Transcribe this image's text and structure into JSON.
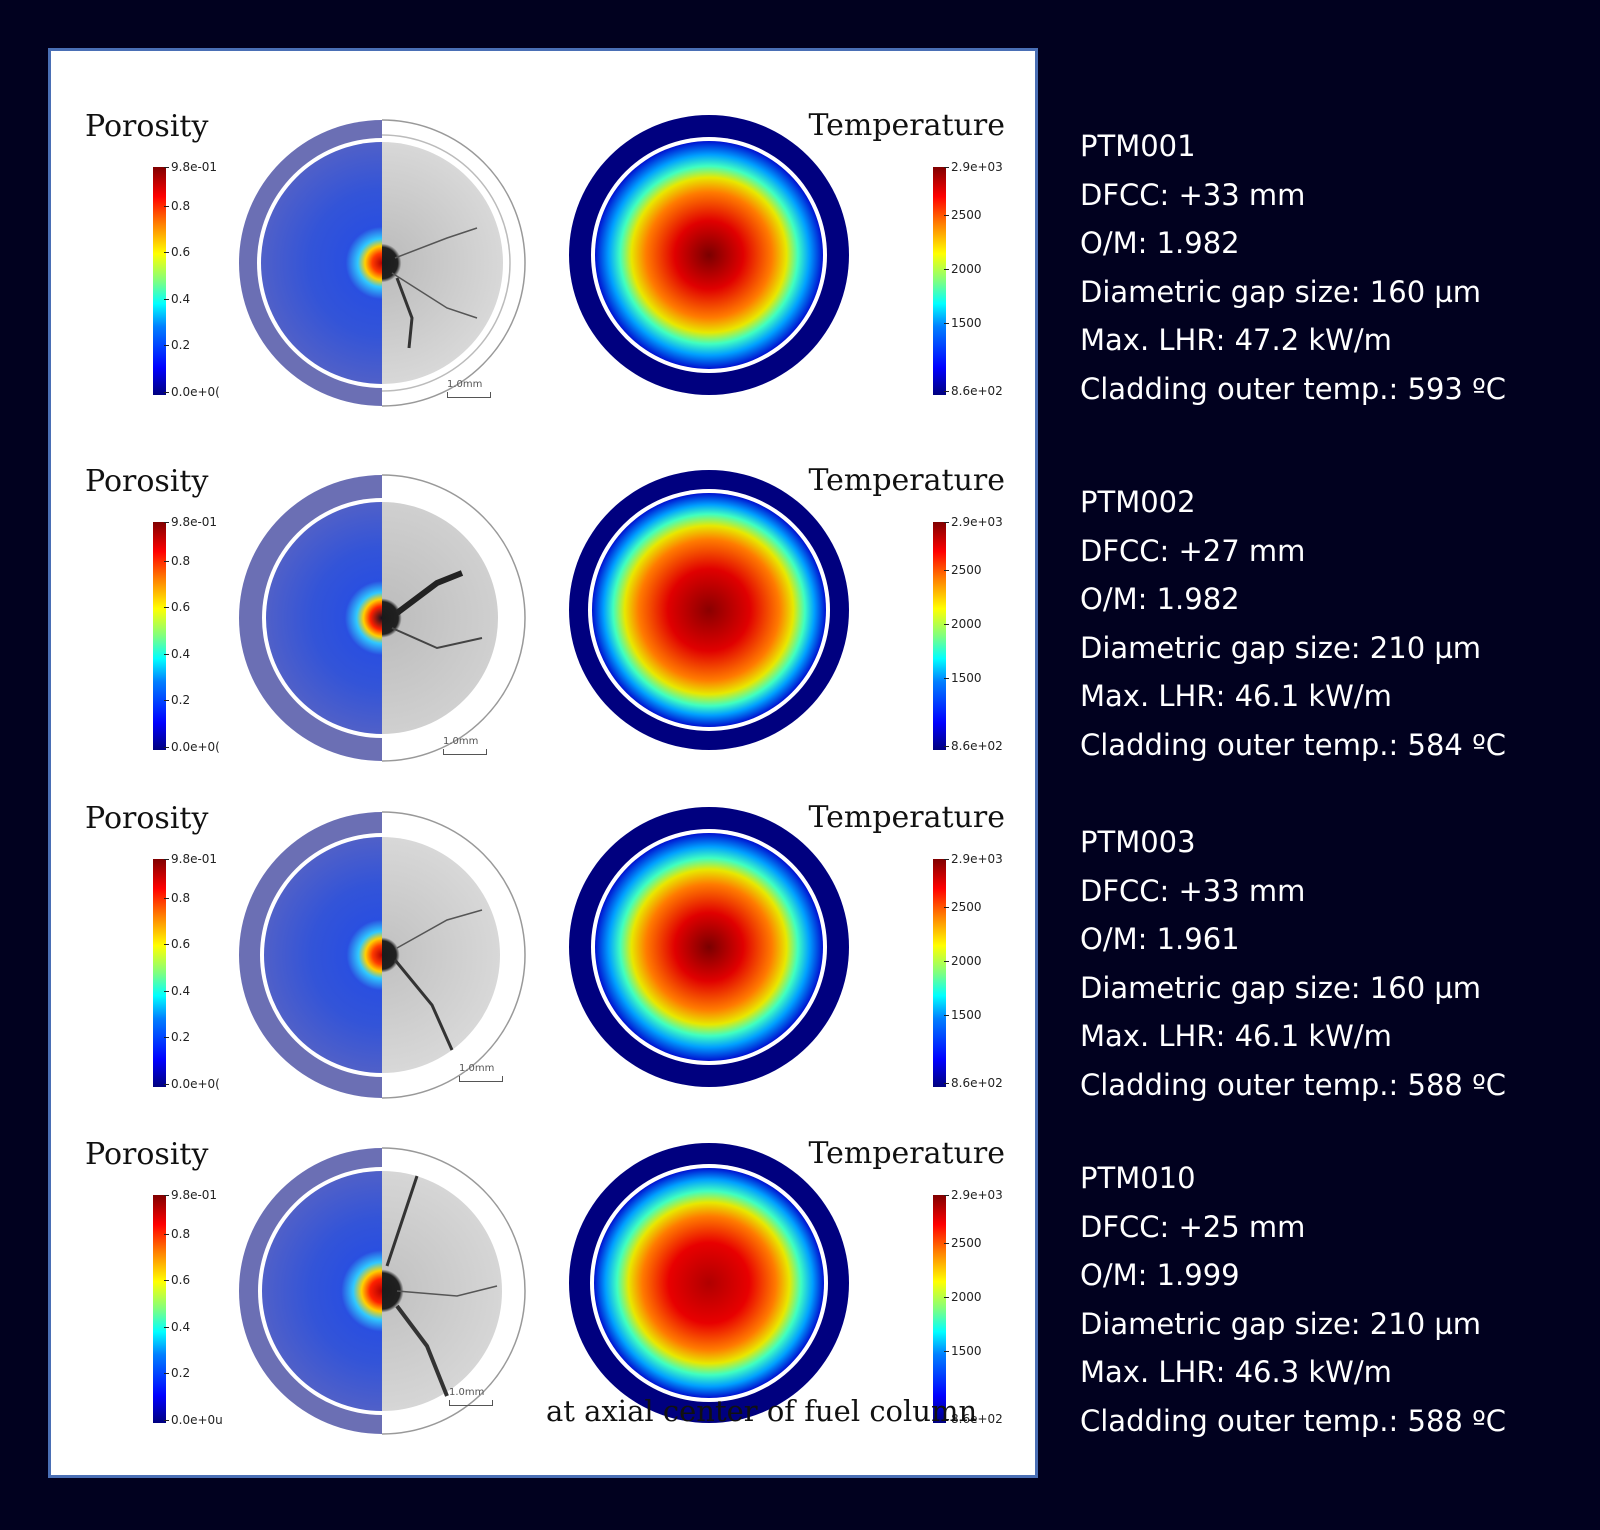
{
  "rows": [
    {
      "porosity_label": "Porosity",
      "temperature_label": "Temperature",
      "porosity_ticks": [
        "9.8e-01",
        "0.8",
        "0.6",
        "0.4",
        "0.2",
        "0.0e+0("
      ],
      "temperature_ticks": [
        "2.9e+03",
        "2500",
        "2000",
        "1500",
        "8.6e+02"
      ],
      "scale_label": "1.0mm"
    },
    {
      "porosity_label": "Porosity",
      "temperature_label": "Temperature",
      "porosity_ticks": [
        "9.8e-01",
        "0.8",
        "0.6",
        "0.4",
        "0.2",
        "0.0e+0("
      ],
      "temperature_ticks": [
        "2.9e+03",
        "2500",
        "2000",
        "1500",
        "8.6e+02"
      ],
      "scale_label": "1.0mm"
    },
    {
      "porosity_label": "Porosity",
      "temperature_label": "Temperature",
      "porosity_ticks": [
        "9.8e-01",
        "0.8",
        "0.6",
        "0.4",
        "0.2",
        "0.0e+0("
      ],
      "temperature_ticks": [
        "2.9e+03",
        "2500",
        "2000",
        "1500",
        "8.6e+02"
      ],
      "scale_label": "1.0mm"
    },
    {
      "porosity_label": "Porosity",
      "temperature_label": "Temperature",
      "porosity_ticks": [
        "9.8e-01",
        "0.8",
        "0.6",
        "0.4",
        "0.2",
        "0.0e+0u"
      ],
      "temperature_ticks": [
        "2.9e+03",
        "2500",
        "2000",
        "1500",
        "8.6e+02"
      ],
      "scale_label": "1.0mm"
    }
  ],
  "caption": "at axial center of fuel column",
  "specimens": [
    {
      "id": "PTM001",
      "dfcc": "DFCC: +33 mm",
      "om": "O/M: 1.982",
      "gap": "Diametric gap size: 160 µm",
      "lhr": "Max. LHR: 47.2 kW/m",
      "clad": "Cladding outer temp.: 593 ºC"
    },
    {
      "id": "PTM002",
      "dfcc": "DFCC: +27 mm",
      "om": "O/M: 1.982",
      "gap": "Diametric gap size: 210 µm",
      "lhr": "Max. LHR: 46.1 kW/m",
      "clad": "Cladding outer temp.: 584 ºC"
    },
    {
      "id": "PTM003",
      "dfcc": "DFCC: +33 mm",
      "om": "O/M: 1.961",
      "gap": "Diametric gap size: 160 µm",
      "lhr": "Max. LHR: 46.1 kW/m",
      "clad": "Cladding outer temp.: 588 ºC"
    },
    {
      "id": "PTM010",
      "dfcc": "DFCC: +25 mm",
      "om": "O/M: 1.999",
      "gap": "Diametric gap size: 210 µm",
      "lhr": "Max. LHR: 46.3 kW/m",
      "clad": "Cladding outer temp.: 588 ºC"
    }
  ],
  "colors": {
    "background": "#01011f",
    "panel_border": "#4a6fb5",
    "cladding": "#00007f",
    "porosity_overlay": "#5b5fb0"
  }
}
